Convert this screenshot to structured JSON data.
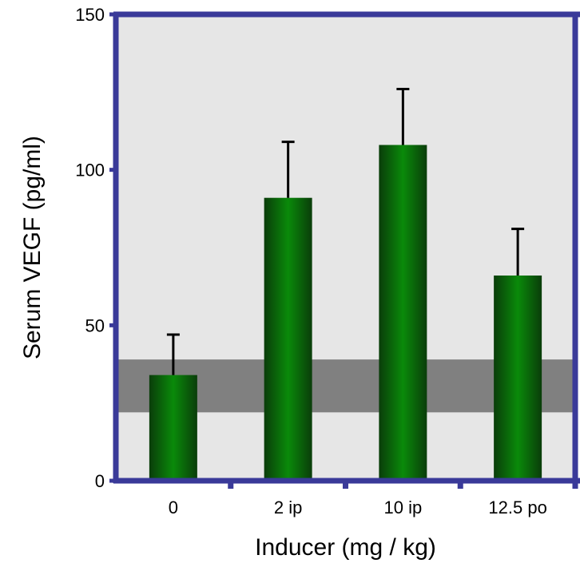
{
  "chart_data": {
    "type": "bar",
    "title": "",
    "xlabel": "Inducer (mg / kg)",
    "ylabel": "Serum VEGF (pg/ml)",
    "categories": [
      "0",
      "2 ip",
      "10 ip",
      "12.5 po"
    ],
    "values": [
      34,
      91,
      108,
      66
    ],
    "error_upper": [
      47,
      109,
      126,
      81
    ],
    "ylim": [
      0,
      150
    ],
    "yticks": [
      "0",
      "50",
      "100",
      "150"
    ],
    "yticks_values": [
      0,
      50,
      100,
      150
    ],
    "reference_band": {
      "from": 22,
      "to": 39
    },
    "grid": false,
    "legend": "none",
    "colors": {
      "plot_background": "#e6e6e6",
      "frame": "#3a3a99",
      "bar_dark": "#0a3d0a",
      "bar_light": "#0a8a0a",
      "band": "#808080",
      "error_bar": "#000000"
    }
  }
}
